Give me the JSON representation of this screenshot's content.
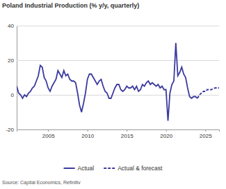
{
  "chart_data": {
    "type": "line",
    "title": "Poland Industrial Production (% y/y, quarterly)",
    "source": "Source: Capital Economics, Refinitiv",
    "x": [
      2001,
      2001.25,
      2001.5,
      2001.75,
      2002,
      2002.25,
      2002.5,
      2002.75,
      2003,
      2003.25,
      2003.5,
      2003.75,
      2004,
      2004.25,
      2004.5,
      2004.75,
      2005,
      2005.25,
      2005.5,
      2005.75,
      2006,
      2006.25,
      2006.5,
      2006.75,
      2007,
      2007.25,
      2007.5,
      2007.75,
      2008,
      2008.25,
      2008.5,
      2008.75,
      2009,
      2009.25,
      2009.5,
      2009.75,
      2010,
      2010.25,
      2010.5,
      2010.75,
      2011,
      2011.25,
      2011.5,
      2011.75,
      2012,
      2012.25,
      2012.5,
      2012.75,
      2013,
      2013.25,
      2013.5,
      2013.75,
      2014,
      2014.25,
      2014.5,
      2014.75,
      2015,
      2015.25,
      2015.5,
      2015.75,
      2016,
      2016.25,
      2016.5,
      2016.75,
      2017,
      2017.25,
      2017.5,
      2017.75,
      2018,
      2018.25,
      2018.5,
      2018.75,
      2019,
      2019.25,
      2019.5,
      2019.75,
      2020,
      2020.25,
      2020.5,
      2020.75,
      2021,
      2021.25,
      2021.5,
      2021.75,
      2022,
      2022.25,
      2022.5,
      2022.75,
      2023,
      2023.25,
      2023.5,
      2023.75,
      2024,
      2024.25,
      2024.5,
      2024.75,
      2025,
      2025.25,
      2025.5,
      2025.75,
      2026,
      2026.25,
      2026.5,
      2026.75
    ],
    "series": [
      {
        "name": "Actual",
        "color": "#3b3a9e",
        "line_style": "solid",
        "values": [
          5,
          1,
          0,
          -2,
          0,
          -1,
          1,
          2,
          4,
          5,
          8,
          11,
          17,
          16,
          10,
          8,
          4,
          2,
          5,
          7,
          9,
          14,
          12,
          10,
          14,
          11,
          12,
          9,
          8,
          8,
          7,
          1,
          -6,
          -10,
          -5,
          1,
          9,
          12,
          12,
          10,
          8,
          6,
          8,
          9,
          5,
          2,
          1,
          -2,
          -2,
          1,
          4,
          6,
          6,
          3,
          2,
          3,
          5,
          4,
          4,
          5,
          3,
          5,
          2,
          3,
          6,
          5,
          7,
          8,
          6,
          7,
          6,
          5,
          6,
          4,
          5,
          3,
          3,
          -15,
          1,
          6,
          8,
          30,
          11,
          13,
          16,
          12,
          10,
          4,
          -1,
          -2,
          -1,
          -1,
          -2,
          null,
          null,
          null,
          null,
          null,
          null,
          null,
          null,
          null,
          null,
          null
        ]
      },
      {
        "name": "Actual & forecast",
        "color": "#3b3a9e",
        "line_style": "dashed",
        "values": [
          null,
          null,
          null,
          null,
          null,
          null,
          null,
          null,
          null,
          null,
          null,
          null,
          null,
          null,
          null,
          null,
          null,
          null,
          null,
          null,
          null,
          null,
          null,
          null,
          null,
          null,
          null,
          null,
          null,
          null,
          null,
          null,
          null,
          null,
          null,
          null,
          null,
          null,
          null,
          null,
          null,
          null,
          null,
          null,
          null,
          null,
          null,
          null,
          null,
          null,
          null,
          null,
          null,
          null,
          null,
          null,
          null,
          null,
          null,
          null,
          null,
          null,
          null,
          null,
          null,
          null,
          null,
          null,
          null,
          null,
          null,
          null,
          null,
          null,
          null,
          null,
          null,
          null,
          null,
          null,
          null,
          null,
          null,
          null,
          null,
          null,
          null,
          null,
          null,
          null,
          null,
          null,
          -2,
          0,
          1,
          2,
          2,
          3,
          3,
          3,
          3.5,
          4,
          4,
          4
        ]
      }
    ],
    "xlim": [
      2001,
      2026.75
    ],
    "xticks": [
      2005,
      2010,
      2015,
      2020,
      2025
    ],
    "ylim": [
      -20,
      40
    ],
    "yticks": [
      -20,
      0,
      20,
      40
    ],
    "grid": true,
    "legend": "bottom"
  }
}
